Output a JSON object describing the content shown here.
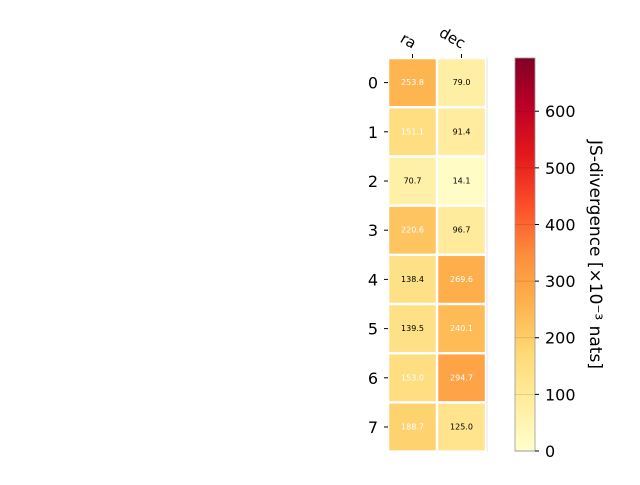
{
  "chart_data": {
    "type": "heatmap",
    "x_categories": [
      "ra",
      "dec"
    ],
    "y_categories": [
      "0",
      "1",
      "2",
      "3",
      "4",
      "5",
      "6",
      "7"
    ],
    "values": [
      [
        253.8,
        79.0
      ],
      [
        151.1,
        91.4
      ],
      [
        70.7,
        14.1
      ],
      [
        220.6,
        96.7
      ],
      [
        138.4,
        269.6
      ],
      [
        139.5,
        240.1
      ],
      [
        153.0,
        294.7
      ],
      [
        188.7,
        125.0
      ]
    ],
    "value_labels": [
      [
        "253.8",
        "79.0"
      ],
      [
        "151.1",
        "91.4"
      ],
      [
        "70.7",
        "14.1"
      ],
      [
        "220.6",
        "96.7"
      ],
      [
        "138.4",
        "269.6"
      ],
      [
        "139.5",
        "240.1"
      ],
      [
        "153.0",
        "294.7"
      ],
      [
        "188.7",
        "125.0"
      ]
    ],
    "colorbar": {
      "label": "JS-divergence [×10⁻³ nats]",
      "range": [
        0,
        694
      ],
      "ticks": [
        0,
        100,
        200,
        300,
        400,
        500,
        600
      ],
      "tick_labels": [
        "0",
        "100",
        "200",
        "300",
        "400",
        "500",
        "600"
      ],
      "colormap": "YlOrRd"
    },
    "grid": false,
    "legend": "colorbar-right"
  }
}
